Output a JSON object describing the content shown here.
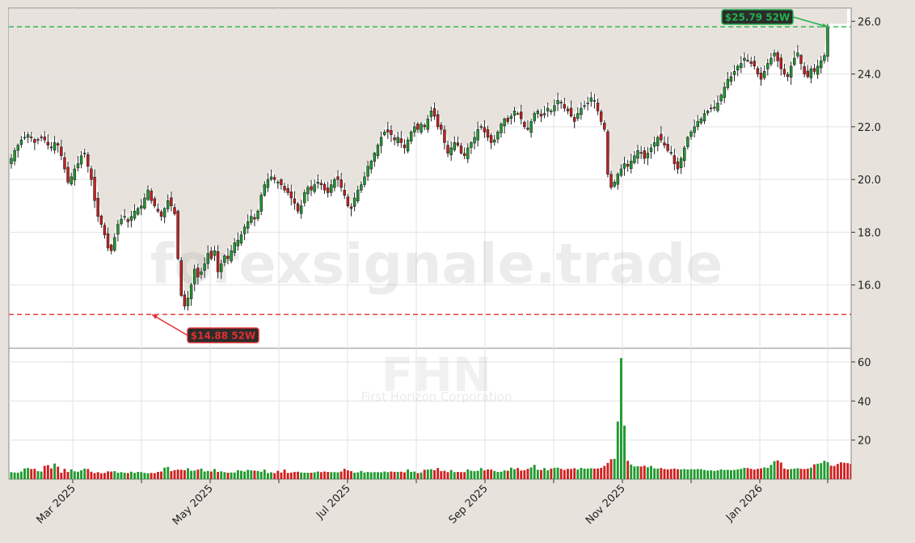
{
  "watermark": {
    "site": "forexsignale.trade",
    "ticker": "FHN",
    "company": "First Horizon Corporation"
  },
  "chart_data": [
    {
      "type": "candlestick",
      "title": "",
      "ylabel": "",
      "ylim": [
        13.6,
        26.5
      ],
      "yticks": [
        "16.0",
        "18.0",
        "20.0",
        "22.0",
        "24.0",
        "26.0"
      ],
      "xticks": [
        "Mar 2025",
        "May 2025",
        "Jul 2025",
        "Sep 2025",
        "Nov 2025",
        "Jan 2026"
      ],
      "grid": true,
      "annotations": [
        {
          "text": "$25.79 52W",
          "value": 25.79,
          "kind": "high",
          "color": "#22b14c"
        },
        {
          "text": "$14.88 52W",
          "value": 14.88,
          "kind": "low",
          "color": "#e03030"
        }
      ],
      "close": [
        20.8,
        21.1,
        21.3,
        21.5,
        21.6,
        21.7,
        21.6,
        21.4,
        21.5,
        21.6,
        21.5,
        21.3,
        21.2,
        21.4,
        21.3,
        20.9,
        20.4,
        19.9,
        20.1,
        20.4,
        20.6,
        20.9,
        21.0,
        20.5,
        20.0,
        19.2,
        18.6,
        18.3,
        17.9,
        17.4,
        17.3,
        17.8,
        18.3,
        18.5,
        18.6,
        18.4,
        18.6,
        18.8,
        18.9,
        19.0,
        19.3,
        19.6,
        19.2,
        19.0,
        18.8,
        18.6,
        18.9,
        19.2,
        19.0,
        18.7,
        17.0,
        15.6,
        15.2,
        15.5,
        16.0,
        16.6,
        16.3,
        16.5,
        16.8,
        17.2,
        17.0,
        17.3,
        16.5,
        16.8,
        17.1,
        17.0,
        17.3,
        17.6,
        17.7,
        17.9,
        18.2,
        18.4,
        18.6,
        18.5,
        18.8,
        19.4,
        19.8,
        20.0,
        20.1,
        20.0,
        19.9,
        19.8,
        19.6,
        19.5,
        19.3,
        19.1,
        18.8,
        19.0,
        19.5,
        19.7,
        19.6,
        19.8,
        19.9,
        19.8,
        19.6,
        19.5,
        19.8,
        20.0,
        20.0,
        19.7,
        19.4,
        19.0,
        18.9,
        19.3,
        19.6,
        19.8,
        20.1,
        20.5,
        20.7,
        21.0,
        21.3,
        21.6,
        21.8,
        21.8,
        21.7,
        21.5,
        21.6,
        21.4,
        21.2,
        21.5,
        21.8,
        22.0,
        21.9,
        22.1,
        22.0,
        22.3,
        22.6,
        22.4,
        22.0,
        21.9,
        21.4,
        21.0,
        21.2,
        21.4,
        21.3,
        21.0,
        20.9,
        21.2,
        21.4,
        21.6,
        21.9,
        22.0,
        21.8,
        21.6,
        21.4,
        21.5,
        21.8,
        22.1,
        22.3,
        22.2,
        22.4,
        22.6,
        22.5,
        22.3,
        22.0,
        21.9,
        22.2,
        22.5,
        22.6,
        22.4,
        22.5,
        22.7,
        22.6,
        22.8,
        23.0,
        22.9,
        22.7,
        22.6,
        22.4,
        22.2,
        22.5,
        22.7,
        22.8,
        22.9,
        23.1,
        23.0,
        22.6,
        22.2,
        21.9,
        20.2,
        19.7,
        19.9,
        20.2,
        20.4,
        20.6,
        20.5,
        20.7,
        20.9,
        21.1,
        21.0,
        20.8,
        21.0,
        21.2,
        21.4,
        21.6,
        21.5,
        21.3,
        21.1,
        21.0,
        20.6,
        20.4,
        20.8,
        21.2,
        21.6,
        21.8,
        22.0,
        22.2,
        22.3,
        22.5,
        22.6,
        22.7,
        22.7,
        22.9,
        23.2,
        23.5,
        23.8,
        23.9,
        24.1,
        24.3,
        24.4,
        24.6,
        24.5,
        24.4,
        24.3,
        24.0,
        23.8,
        24.1,
        24.4,
        24.6,
        24.8,
        24.5,
        24.2,
        24.0,
        23.9,
        24.3,
        24.6,
        24.8,
        24.4,
        24.0,
        23.9,
        24.2,
        24.1,
        24.3,
        24.5,
        24.7,
        25.79
      ]
    },
    {
      "type": "bar",
      "title": "",
      "ylabel": "",
      "ylim": [
        0,
        67
      ],
      "yticks": [
        "20",
        "40",
        "60"
      ],
      "values": [
        3.6,
        3.4,
        3.3,
        3.9,
        5.5,
        5.7,
        5.2,
        5.3,
        4.1,
        3.9,
        6.8,
        7.2,
        5.5,
        8.0,
        6.4,
        3.3,
        5.3,
        3.7,
        5.0,
        4.0,
        3.8,
        4.5,
        5.4,
        5.2,
        3.8,
        3.1,
        3.6,
        3.0,
        3.2,
        4.0,
        3.9,
        4.1,
        3.3,
        3.6,
        3.3,
        3.1,
        3.8,
        3.2,
        3.7,
        3.6,
        3.2,
        3.0,
        3.2,
        3.1,
        3.7,
        3.9,
        5.9,
        6.3,
        4.1,
        4.6,
        4.9,
        4.8,
        4.6,
        5.6,
        4.3,
        4.4,
        4.9,
        5.4,
        3.9,
        4.2,
        3.9,
        5.2,
        3.7,
        4.0,
        3.6,
        3.3,
        3.4,
        3.4,
        4.6,
        4.3,
        3.9,
        4.8,
        4.5,
        4.4,
        4.2,
        3.8,
        4.9,
        3.1,
        3.5,
        3.1,
        4.3,
        3.4,
        4.9,
        3.2,
        3.4,
        3.7,
        3.8,
        3.4,
        3.3,
        3.3,
        3.3,
        3.5,
        3.9,
        3.6,
        3.9,
        3.7,
        3.6,
        3.6,
        3.5,
        3.9,
        5.3,
        4.5,
        4.1,
        3.3,
        3.5,
        4.2,
        3.4,
        3.7,
        3.5,
        3.6,
        3.6,
        3.5,
        3.9,
        3.6,
        3.9,
        3.7,
        3.7,
        3.8,
        3.5,
        5.0,
        3.7,
        3.9,
        3.1,
        3.4,
        4.8,
        4.9,
        5.1,
        4.6,
        5.7,
        4.1,
        4.3,
        3.6,
        4.7,
        3.6,
        3.7,
        3.6,
        3.6,
        5.0,
        4.3,
        4.1,
        4.3,
        5.7,
        4.5,
        5.0,
        4.9,
        4.2,
        3.7,
        3.8,
        4.5,
        4.3,
        5.9,
        5.1,
        5.7,
        4.4,
        4.6,
        5.3,
        6.0,
        7.3,
        4.8,
        4.7,
        5.7,
        4.5,
        5.4,
        5.8,
        5.9,
        5.3,
        4.7,
        5.3,
        5.2,
        5.6,
        4.9,
        5.8,
        5.4,
        5.4,
        5.6,
        5.4,
        5.5,
        5.8,
        6.8,
        8.3,
        10.2,
        10.4,
        29.5,
        62.0,
        27.4,
        9.4,
        7.5,
        6.5,
        6.6,
        6.5,
        6.9,
        6.1,
        6.8,
        5.5,
        5.4,
        5.7,
        5.2,
        5.0,
        5.2,
        5.4,
        5.1,
        5.0,
        5.2,
        5.0,
        5.1,
        5.0,
        5.2,
        5.1,
        4.7,
        4.4,
        4.5,
        4.2,
        4.5,
        5.0,
        4.7,
        4.8,
        4.6,
        4.7,
        5.0,
        5.3,
        5.8,
        5.7,
        5.3,
        4.9,
        5.3,
        5.5,
        6.0,
        5.8,
        7.3,
        9.2,
        9.6,
        8.5,
        5.4,
        5.0,
        5.2,
        5.4,
        5.6,
        5.3,
        5.2,
        5.4,
        5.9,
        7.6,
        7.9,
        8.2,
        9.4,
        8.7,
        6.9,
        6.8,
        7.8,
        8.6,
        8.4,
        8.2,
        7.8,
        7.3,
        8.1,
        6.9,
        9.4,
        10.7
      ]
    }
  ]
}
